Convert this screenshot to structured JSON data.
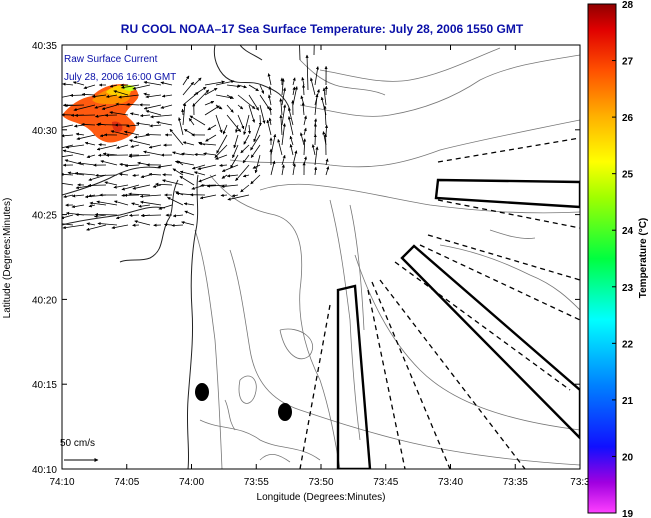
{
  "title": "RU COOL  NOAA–17  Sea Surface Temperature:  July 28, 2006 1550 GMT",
  "legend_overlay": {
    "line1": "Raw Surface Current",
    "line2": "July 28, 2006 16:00 GMT"
  },
  "axes": {
    "xlabel": "Longitude (Degrees:Minutes)",
    "ylabel": "Latitude (Degrees:Minutes)",
    "x_ticks": [
      "74:10",
      "74:05",
      "74:00",
      "73:55",
      "73:50",
      "73:45",
      "73:40",
      "73:35",
      "73:3"
    ],
    "y_ticks": [
      "40:35",
      "40:30",
      "40:25",
      "40:20",
      "40:15",
      "40:10"
    ]
  },
  "scale": {
    "label": "50 cm/s"
  },
  "colorbar": {
    "label": "Temperature (°C)",
    "ticks": [
      "28",
      "27",
      "26",
      "25",
      "24",
      "23",
      "22",
      "21",
      "20",
      "19"
    ],
    "min": 19,
    "max": 28
  }
}
